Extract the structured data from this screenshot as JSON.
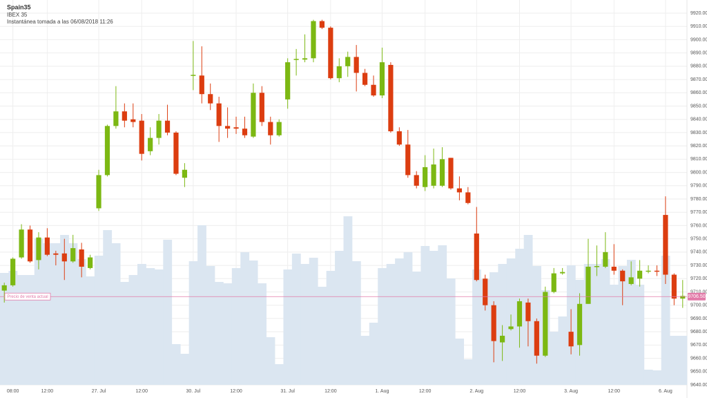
{
  "chart_data": {
    "type": "candlestick",
    "title": "Spain35",
    "subtitle": "IBEX 35",
    "snapshot": "Instantánea tomada a las 06/08/2018 11:26",
    "up_color": "#7cb813",
    "down_color": "#dc3d10",
    "volume_color": "#dbe6f1",
    "grid": true,
    "x": [
      null,
      "08:00",
      null,
      null,
      null,
      "12:00",
      null,
      null,
      null,
      null,
      null,
      "27. Jul",
      null,
      null,
      null,
      null,
      "12:00",
      null,
      null,
      null,
      null,
      null,
      "30. Jul",
      null,
      null,
      null,
      null,
      "12:00",
      null,
      null,
      null,
      null,
      null,
      "31. Jul",
      null,
      null,
      null,
      null,
      "12:00",
      null,
      null,
      null,
      null,
      null,
      "1. Aug",
      null,
      null,
      null,
      null,
      "12:00",
      null,
      null,
      null,
      null,
      null,
      "2. Aug",
      null,
      null,
      null,
      null,
      "12:00",
      null,
      null,
      null,
      null,
      null,
      "3. Aug",
      null,
      null,
      null,
      null,
      "12:00",
      null,
      null,
      null,
      null,
      null,
      "6. Aug",
      null,
      null
    ],
    "open": [
      9711,
      9715,
      9736,
      9757,
      9734,
      9751,
      9739,
      9739,
      9733,
      9742,
      9728,
      9773,
      9798,
      9835,
      9846,
      9840,
      9839,
      9816,
      9826,
      9839,
      9830,
      9796,
      9873,
      9873,
      9859,
      9852,
      9835,
      9834,
      9833,
      9827,
      9860,
      9838,
      9828,
      9855,
      9885,
      9885,
      9886,
      9914,
      9909,
      9871,
      9880,
      9887,
      9875,
      9866,
      9858,
      9881,
      9831,
      9821,
      9798,
      9789,
      9790,
      9790,
      9811,
      9788,
      9785,
      9754,
      9720,
      9700,
      9672,
      9682,
      9684,
      9702,
      9688,
      9662,
      9710,
      9724,
      9680,
      9670,
      9701,
      9729,
      9729,
      9729,
      9726,
      9716,
      9720,
      9725.5,
      9726,
      9768,
      9723,
      9705
    ],
    "high": [
      9717,
      9736,
      9761,
      9760,
      9755,
      9758,
      9741,
      9750,
      9753,
      9747,
      9738,
      9802,
      9836,
      9865,
      9852,
      9852,
      9844,
      9834,
      9844,
      9851,
      9831,
      9807,
      9899,
      9895,
      9867,
      9857,
      9849,
      9842,
      9842,
      9867,
      9865,
      9842,
      9840,
      9886,
      9893,
      9904,
      9915,
      9915,
      9910,
      9886,
      9891,
      9896,
      9878,
      9873,
      9894,
      9883,
      9834,
      9832,
      9801,
      9813,
      9818,
      9819,
      9811,
      9797,
      9789,
      9774,
      9723,
      9703,
      9685,
      9693,
      9705,
      9705,
      9690,
      9714,
      9728,
      9728,
      9697,
      9709,
      9750,
      9745,
      9755,
      9746,
      9727,
      9733,
      9734,
      9730,
      9730,
      9782,
      9724,
      9719
    ],
    "low": [
      9702,
      9714,
      9735,
      9732,
      9727,
      9737,
      9730,
      9719,
      9732,
      9721,
      9727,
      9771,
      9797,
      9833,
      9834,
      9834,
      9809,
      9813,
      9821,
      9828,
      9798,
      9789,
      9862,
      9852,
      9847,
      9823,
      9826,
      9829,
      9826,
      9826,
      9835,
      9821,
      9827,
      9848,
      9873,
      9883,
      9883,
      9908,
      9870,
      9868,
      9872,
      9861,
      9865,
      9857,
      9856,
      9830,
      9820,
      9796,
      9788,
      9786,
      9788,
      9789,
      9787,
      9779,
      9776,
      9718,
      9696,
      9657,
      9658,
      9681,
      9668,
      9669,
      9656,
      9661,
      9709,
      9723,
      9663,
      9662,
      9701,
      9722,
      9728,
      9723,
      9700,
      9715,
      9714,
      9724,
      9722,
      9716,
      9700,
      9698
    ],
    "close": [
      9715,
      9735,
      9757,
      9733,
      9751,
      9738,
      9738,
      9733,
      9743,
      9729,
      9736,
      9798,
      9835,
      9846,
      9839,
      9838,
      9814,
      9826,
      9839,
      9830,
      9799,
      9802,
      9873.5,
      9859,
      9852,
      9835,
      9833,
      9833,
      9828,
      9860,
      9838,
      9828,
      9838,
      9883,
      9885.5,
      9886,
      9914,
      9909,
      9871,
      9880,
      9887,
      9875,
      9866,
      9858,
      9883,
      9831,
      9821,
      9798,
      9790,
      9804,
      9806,
      9810,
      9788,
      9785,
      9777,
      9719,
      9700,
      9673,
      9677,
      9684,
      9703,
      9688,
      9662,
      9710,
      9724,
      9725,
      9669,
      9701,
      9729,
      9729.5,
      9740,
      9726,
      9718,
      9721,
      9726,
      9726,
      9725.5,
      9723,
      9705,
      9707
    ],
    "volume": [
      162,
      165,
      159,
      159,
      212,
      205,
      205,
      217,
      205,
      182,
      157,
      187,
      224,
      205,
      149,
      159,
      175,
      169,
      167,
      210,
      59,
      45,
      179,
      231,
      172,
      149,
      147,
      169,
      192,
      180,
      147,
      69,
      30,
      167,
      190,
      175,
      184,
      142,
      165,
      194,
      244,
      179,
      71,
      90,
      169,
      175,
      183,
      192,
      164,
      201,
      194,
      202,
      154,
      67,
      37,
      167,
      153,
      163,
      175,
      183,
      197,
      217,
      172,
      137,
      77,
      99,
      173,
      152,
      175,
      175,
      182,
      145,
      172,
      181,
      145,
      22,
      21,
      187,
      71,
      71
    ],
    "current_price": {
      "value": 9706.5,
      "label": "9706.50"
    },
    "current_price_text": "Precio de venta actual",
    "price_line_color": "#e27aa8",
    "ylim": [
      9640,
      9920
    ],
    "yticks": [
      {
        "value": 9640,
        "label": "9640.00"
      },
      {
        "value": 9650,
        "label": "9650.00"
      },
      {
        "value": 9660,
        "label": "9660.00"
      },
      {
        "value": 9670,
        "label": "9670.00"
      },
      {
        "value": 9680,
        "label": "9680.00"
      },
      {
        "value": 9690,
        "label": "9690.00"
      },
      {
        "value": 9700,
        "label": "9700.00"
      },
      {
        "value": 9710,
        "label": "9710.00"
      },
      {
        "value": 9720,
        "label": "9720.00"
      },
      {
        "value": 9730,
        "label": "9730.00"
      },
      {
        "value": 9740,
        "label": "9740.00"
      },
      {
        "value": 9750,
        "label": "9750.00"
      },
      {
        "value": 9760,
        "label": "9760.00"
      },
      {
        "value": 9770,
        "label": "9770.00"
      },
      {
        "value": 9780,
        "label": "9780.00"
      },
      {
        "value": 9790,
        "label": "9790.00"
      },
      {
        "value": 9800,
        "label": "9800.00"
      },
      {
        "value": 9810,
        "label": "9810.00"
      },
      {
        "value": 9820,
        "label": "9820.00"
      },
      {
        "value": 9830,
        "label": "9830.00"
      },
      {
        "value": 9840,
        "label": "9840.00"
      },
      {
        "value": 9850,
        "label": "9850.00"
      },
      {
        "value": 9860,
        "label": "9860.00"
      },
      {
        "value": 9870,
        "label": "9870.00"
      },
      {
        "value": 9880,
        "label": "9880.00"
      },
      {
        "value": 9890,
        "label": "9890.00"
      },
      {
        "value": 9900,
        "label": "9900.00"
      },
      {
        "value": 9910,
        "label": "9910.00"
      },
      {
        "value": 9920,
        "label": "9920.00"
      }
    ]
  }
}
